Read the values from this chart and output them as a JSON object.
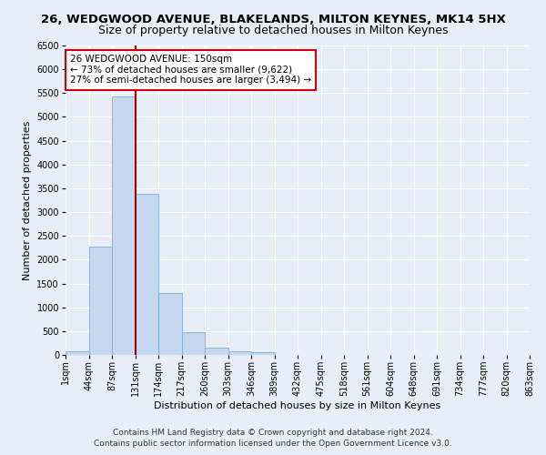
{
  "title1": "26, WEDGWOOD AVENUE, BLAKELANDS, MILTON KEYNES, MK14 5HX",
  "title2": "Size of property relative to detached houses in Milton Keynes",
  "xlabel": "Distribution of detached houses by size in Milton Keynes",
  "ylabel": "Number of detached properties",
  "footer1": "Contains HM Land Registry data © Crown copyright and database right 2024.",
  "footer2": "Contains public sector information licensed under the Open Government Licence v3.0.",
  "annotation_line1": "26 WEDGWOOD AVENUE: 150sqm",
  "annotation_line2": "← 73% of detached houses are smaller (9,622)",
  "annotation_line3": "27% of semi-detached houses are larger (3,494) →",
  "bar_values": [
    70,
    2270,
    5430,
    3380,
    1300,
    480,
    155,
    75,
    55,
    0,
    0,
    0,
    0,
    0,
    0,
    0,
    0,
    0,
    0,
    0
  ],
  "bar_color": "#c5d8f0",
  "bar_edgecolor": "#7bafd4",
  "vline_color": "#aa0000",
  "ylim": [
    0,
    6500
  ],
  "yticks": [
    0,
    500,
    1000,
    1500,
    2000,
    2500,
    3000,
    3500,
    4000,
    4500,
    5000,
    5500,
    6000,
    6500
  ],
  "xlabels": [
    "1sqm",
    "44sqm",
    "87sqm",
    "131sqm",
    "174sqm",
    "217sqm",
    "260sqm",
    "303sqm",
    "346sqm",
    "389sqm",
    "432sqm",
    "475sqm",
    "518sqm",
    "561sqm",
    "604sqm",
    "648sqm",
    "691sqm",
    "734sqm",
    "777sqm",
    "820sqm",
    "863sqm"
  ],
  "background_color": "#e8eef8",
  "grid_color": "#ffffff",
  "annotation_box_color": "#ffffff",
  "annotation_box_edgecolor": "#cc0000",
  "title1_fontsize": 9.5,
  "title2_fontsize": 9,
  "footer_fontsize": 6.5,
  "axis_label_fontsize": 8,
  "tick_fontsize": 7,
  "annotation_fontsize": 7.5,
  "ylabel_fontsize": 8
}
